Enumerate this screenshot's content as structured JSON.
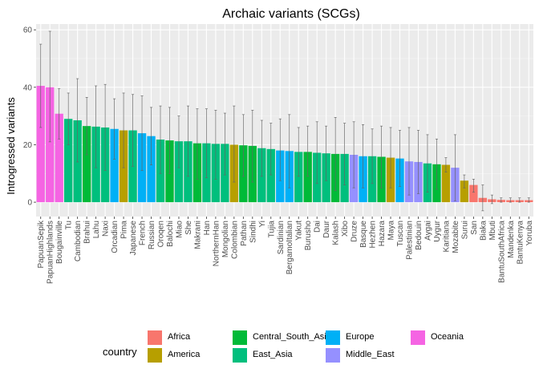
{
  "chart_data": {
    "type": "bar",
    "title": "Archaic variants (SCGs)",
    "xlabel": "",
    "ylabel": "Introgressed variants",
    "ylim": [
      -5,
      62
    ],
    "yticks": [
      0,
      20,
      40,
      60
    ],
    "grid": true,
    "legend_title": "country",
    "legend_position": "bottom",
    "groups": [
      {
        "name": "Africa",
        "color": "#F8766D"
      },
      {
        "name": "America",
        "color": "#B79F00"
      },
      {
        "name": "Central_South_Asia",
        "color": "#00BA38"
      },
      {
        "name": "East_Asia",
        "color": "#00BF7D"
      },
      {
        "name": "Europe",
        "color": "#00B0F6"
      },
      {
        "name": "Middle_East",
        "color": "#9590FF"
      },
      {
        "name": "Oceania",
        "color": "#F564E3"
      }
    ],
    "bars": [
      {
        "label": "PapuanSepik",
        "group": "Oceania",
        "value": 40.5,
        "lo": 26.0,
        "hi": 55.0
      },
      {
        "label": "PapuanHighlands",
        "group": "Oceania",
        "value": 40.0,
        "lo": 21.0,
        "hi": 59.5
      },
      {
        "label": "Bougainville",
        "group": "Oceania",
        "value": 30.8,
        "lo": 22.0,
        "hi": 39.5
      },
      {
        "label": "Tu",
        "group": "East_Asia",
        "value": 29.0,
        "lo": 20.0,
        "hi": 38.0
      },
      {
        "label": "Cambodian",
        "group": "East_Asia",
        "value": 28.5,
        "lo": 14.0,
        "hi": 43.0
      },
      {
        "label": "Brahui",
        "group": "Central_South_Asia",
        "value": 26.5,
        "lo": 16.5,
        "hi": 36.5
      },
      {
        "label": "Lahu",
        "group": "East_Asia",
        "value": 26.3,
        "lo": 12.0,
        "hi": 40.5
      },
      {
        "label": "Naxi",
        "group": "East_Asia",
        "value": 26.0,
        "lo": 11.0,
        "hi": 41.0
      },
      {
        "label": "Orcadian",
        "group": "Europe",
        "value": 25.5,
        "lo": 15.0,
        "hi": 36.0
      },
      {
        "label": "Pima",
        "group": "America",
        "value": 25.0,
        "lo": 12.0,
        "hi": 38.0
      },
      {
        "label": "Japanese",
        "group": "East_Asia",
        "value": 25.0,
        "lo": 12.5,
        "hi": 37.5
      },
      {
        "label": "French",
        "group": "Europe",
        "value": 24.0,
        "lo": 11.0,
        "hi": 37.0
      },
      {
        "label": "Russian",
        "group": "Europe",
        "value": 23.0,
        "lo": 13.0,
        "hi": 33.0
      },
      {
        "label": "Oroqen",
        "group": "East_Asia",
        "value": 21.8,
        "lo": 10.0,
        "hi": 33.5
      },
      {
        "label": "Balochi",
        "group": "Central_South_Asia",
        "value": 21.5,
        "lo": 10.0,
        "hi": 33.0
      },
      {
        "label": "Miao",
        "group": "East_Asia",
        "value": 21.2,
        "lo": 12.0,
        "hi": 30.0
      },
      {
        "label": "She",
        "group": "East_Asia",
        "value": 21.2,
        "lo": 9.0,
        "hi": 33.5
      },
      {
        "label": "Makrani",
        "group": "Central_South_Asia",
        "value": 20.5,
        "lo": 8.0,
        "hi": 32.5
      },
      {
        "label": "Han",
        "group": "East_Asia",
        "value": 20.5,
        "lo": 8.5,
        "hi": 32.5
      },
      {
        "label": "NorthernHan",
        "group": "East_Asia",
        "value": 20.3,
        "lo": 8.0,
        "hi": 32.0
      },
      {
        "label": "Mongolian",
        "group": "East_Asia",
        "value": 20.3,
        "lo": 9.5,
        "hi": 31.0
      },
      {
        "label": "Colombian",
        "group": "America",
        "value": 20.0,
        "lo": 7.0,
        "hi": 33.5
      },
      {
        "label": "Pathan",
        "group": "Central_South_Asia",
        "value": 19.8,
        "lo": 9.0,
        "hi": 30.5
      },
      {
        "label": "Sindhi",
        "group": "Central_South_Asia",
        "value": 19.6,
        "lo": 7.0,
        "hi": 32.0
      },
      {
        "label": "Yi",
        "group": "East_Asia",
        "value": 18.8,
        "lo": 9.0,
        "hi": 28.5
      },
      {
        "label": "Tujia",
        "group": "East_Asia",
        "value": 18.5,
        "lo": 9.5,
        "hi": 27.5
      },
      {
        "label": "Sardinian",
        "group": "Europe",
        "value": 18.0,
        "lo": 7.5,
        "hi": 29.0
      },
      {
        "label": "BergamoItalian",
        "group": "Europe",
        "value": 17.8,
        "lo": 5.0,
        "hi": 30.5
      },
      {
        "label": "Yakut",
        "group": "East_Asia",
        "value": 17.5,
        "lo": 9.0,
        "hi": 26.0
      },
      {
        "label": "Burusho",
        "group": "Central_South_Asia",
        "value": 17.5,
        "lo": 9.0,
        "hi": 26.5
      },
      {
        "label": "Dai",
        "group": "East_Asia",
        "value": 17.2,
        "lo": 6.5,
        "hi": 28.0
      },
      {
        "label": "Daur",
        "group": "East_Asia",
        "value": 17.0,
        "lo": 7.5,
        "hi": 26.5
      },
      {
        "label": "Kalash",
        "group": "Central_South_Asia",
        "value": 16.8,
        "lo": 4.0,
        "hi": 29.5
      },
      {
        "label": "Xibo",
        "group": "East_Asia",
        "value": 16.8,
        "lo": 6.0,
        "hi": 27.5
      },
      {
        "label": "Druze",
        "group": "Middle_East",
        "value": 16.5,
        "lo": 5.0,
        "hi": 28.0
      },
      {
        "label": "Basque",
        "group": "Europe",
        "value": 16.0,
        "lo": 5.0,
        "hi": 27.0
      },
      {
        "label": "Hezhen",
        "group": "East_Asia",
        "value": 16.0,
        "lo": 6.5,
        "hi": 25.5
      },
      {
        "label": "Hazara",
        "group": "Central_South_Asia",
        "value": 15.8,
        "lo": 5.0,
        "hi": 26.5
      },
      {
        "label": "Maya",
        "group": "America",
        "value": 15.5,
        "lo": 5.0,
        "hi": 26.0
      },
      {
        "label": "Tuscan",
        "group": "Europe",
        "value": 15.2,
        "lo": 5.5,
        "hi": 25.0
      },
      {
        "label": "Palestinian",
        "group": "Middle_East",
        "value": 14.2,
        "lo": 2.5,
        "hi": 26.0
      },
      {
        "label": "Bedouin",
        "group": "Middle_East",
        "value": 14.0,
        "lo": 3.0,
        "hi": 25.0
      },
      {
        "label": "Aygai",
        "group": "East_Asia",
        "value": 13.5,
        "lo": 3.5,
        "hi": 23.5
      },
      {
        "label": "Uygur",
        "group": "Central_South_Asia",
        "value": 13.2,
        "lo": 4.5,
        "hi": 22.0
      },
      {
        "label": "Karitiana",
        "group": "America",
        "value": 13.0,
        "lo": 10.5,
        "hi": 15.5
      },
      {
        "label": "Mozabite",
        "group": "Middle_East",
        "value": 12.0,
        "lo": 0.5,
        "hi": 23.5
      },
      {
        "label": "Surui",
        "group": "America",
        "value": 7.5,
        "lo": 5.0,
        "hi": 9.5
      },
      {
        "label": "San",
        "group": "Africa",
        "value": 6.0,
        "lo": 3.5,
        "hi": 8.0
      },
      {
        "label": "Biaka",
        "group": "Africa",
        "value": 1.5,
        "lo": -3.0,
        "hi": 6.0
      },
      {
        "label": "Mbuti",
        "group": "Africa",
        "value": 1.0,
        "lo": -0.5,
        "hi": 2.5
      },
      {
        "label": "BantuSouthAfrica",
        "group": "Africa",
        "value": 0.8,
        "lo": 0.0,
        "hi": 1.5
      },
      {
        "label": "Mandenka",
        "group": "Africa",
        "value": 0.7,
        "lo": 0.0,
        "hi": 1.5
      },
      {
        "label": "BantuKenya",
        "group": "Africa",
        "value": 0.7,
        "lo": 0.0,
        "hi": 1.5
      },
      {
        "label": "Yoruba",
        "group": "Africa",
        "value": 0.7,
        "lo": 0.0,
        "hi": 1.5
      }
    ]
  }
}
